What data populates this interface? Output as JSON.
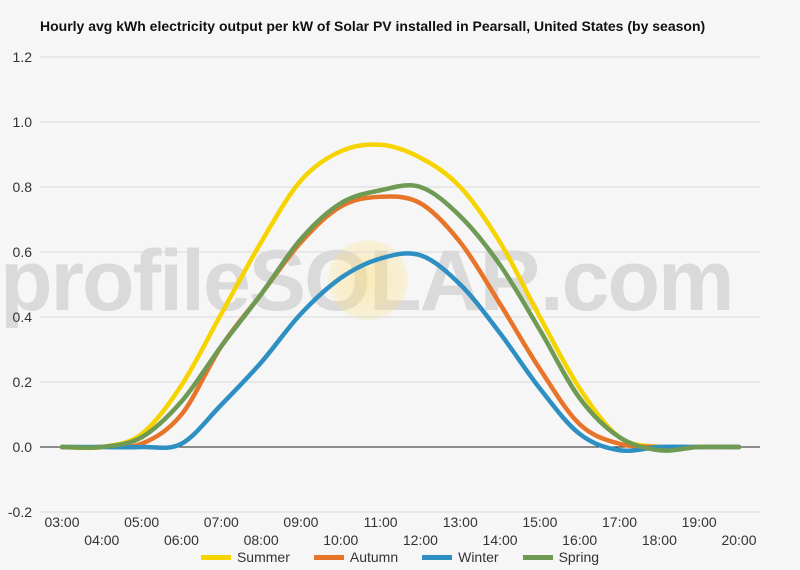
{
  "chart_data": {
    "type": "line",
    "title": "Hourly avg kWh electricity output per kW of Solar PV installed in Pearsall, United States (by season)",
    "xlabel": "",
    "ylabel": "",
    "ylim": [
      -0.2,
      1.2
    ],
    "yticks": [
      "-0.2",
      "0.0",
      "0.2",
      "0.4",
      "0.6",
      "0.8",
      "1.0",
      "1.2"
    ],
    "x": [
      "03:00",
      "04:00",
      "05:00",
      "06:00",
      "07:00",
      "08:00",
      "09:00",
      "10:00",
      "11:00",
      "12:00",
      "13:00",
      "14:00",
      "15:00",
      "16:00",
      "17:00",
      "18:00",
      "19:00",
      "20:00"
    ],
    "grid": true,
    "legend_position": "bottom",
    "series": [
      {
        "name": "Summer",
        "color": "#f5d400",
        "values": [
          0,
          0,
          0.04,
          0.19,
          0.41,
          0.63,
          0.82,
          0.91,
          0.93,
          0.89,
          0.8,
          0.63,
          0.4,
          0.18,
          0.03,
          0,
          0,
          0
        ]
      },
      {
        "name": "Autumn",
        "color": "#e8742a",
        "values": [
          0,
          0,
          0.01,
          0.1,
          0.31,
          0.47,
          0.63,
          0.74,
          0.77,
          0.75,
          0.63,
          0.44,
          0.24,
          0.07,
          0.01,
          0,
          0,
          0
        ]
      },
      {
        "name": "Winter",
        "color": "#2e8fc3",
        "values": [
          0,
          0,
          0,
          0.01,
          0.13,
          0.26,
          0.41,
          0.52,
          0.58,
          0.59,
          0.5,
          0.35,
          0.18,
          0.04,
          -0.01,
          0,
          0,
          0
        ]
      },
      {
        "name": "Spring",
        "color": "#6e9a54",
        "values": [
          0,
          0,
          0.03,
          0.14,
          0.31,
          0.47,
          0.64,
          0.75,
          0.79,
          0.8,
          0.71,
          0.56,
          0.36,
          0.15,
          0.03,
          -0.01,
          0,
          0
        ]
      }
    ],
    "watermark": "profileSOLAR.com"
  }
}
